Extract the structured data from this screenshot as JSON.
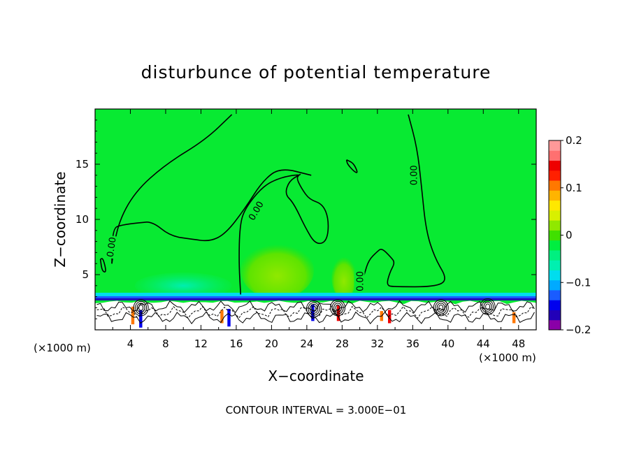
{
  "chart_data": {
    "type": "heatmap",
    "title": "disturbunce of potential temperature",
    "xlabel": "X−coordinate",
    "ylabel": "Z−coordinate",
    "x_unit_label": "(×1000 m)",
    "y_unit_label": "(×1000 m)",
    "footer": "CONTOUR INTERVAL = 3.000E−01",
    "xlim": [
      0,
      50
    ],
    "ylim": [
      0,
      20
    ],
    "x_ticks": [
      4,
      8,
      12,
      16,
      20,
      24,
      28,
      32,
      36,
      40,
      44,
      48
    ],
    "x_tick_labels": [
      "4",
      "8",
      "12",
      "16",
      "20",
      "24",
      "28",
      "32",
      "36",
      "40",
      "44",
      "48"
    ],
    "y_ticks": [
      5,
      10,
      15
    ],
    "y_tick_labels": [
      "5",
      "10",
      "15"
    ],
    "colorbar": {
      "range": [
        -0.2,
        0.2
      ],
      "tick_values": [
        0.2,
        0.1,
        0,
        -0.1,
        -0.2
      ],
      "tick_labels": [
        "0.2",
        "0.1",
        "0",
        "−0.1",
        "−0.2"
      ],
      "colors": [
        "#8a00a8",
        "#2200b8",
        "#0000ee",
        "#1a5cff",
        "#00aaff",
        "#00ddee",
        "#00f0b0",
        "#00f080",
        "#00ee40",
        "#40e000",
        "#90e800",
        "#d8f000",
        "#ffe800",
        "#ffb400",
        "#ff7800",
        "#ff2000",
        "#ee0000",
        "#ff7070",
        "#ff9999"
      ]
    },
    "background_value": 0.0,
    "contour_labels": [
      {
        "text": "0.00",
        "x": 1.8,
        "z": 7.5,
        "angle": -82
      },
      {
        "text": "0.00",
        "x": 18.2,
        "z": 10.8,
        "angle": -60
      },
      {
        "text": "0.00",
        "x": 36.1,
        "z": 14.0,
        "angle": -90
      },
      {
        "text": "0.00",
        "x": 30.0,
        "z": 4.4,
        "angle": -90
      }
    ],
    "contour_lines": [
      {
        "name": "upper-left-zero-contour",
        "points": [
          [
            1.9,
            6.0
          ],
          [
            2.5,
            9.5
          ],
          [
            4.5,
            12.5
          ],
          [
            8.0,
            15.0
          ],
          [
            12.5,
            17.2
          ],
          [
            15.5,
            19.5
          ]
        ]
      },
      {
        "name": "upper-left-zero-contour-lower",
        "points": [
          [
            1.9,
            6.0
          ],
          [
            2.0,
            9.2
          ],
          [
            3.0,
            9.5
          ],
          [
            5.0,
            9.7
          ],
          [
            6.5,
            9.8
          ],
          [
            8.5,
            8.5
          ],
          [
            11.0,
            8.2
          ],
          [
            13.0,
            8.0
          ],
          [
            14.8,
            8.7
          ],
          [
            17.0,
            11.0
          ],
          [
            19.0,
            13.5
          ],
          [
            21.0,
            14.7
          ],
          [
            24.5,
            14.0
          ]
        ]
      },
      {
        "name": "right-zero-contour",
        "points": [
          [
            35.5,
            19.5
          ],
          [
            36.5,
            16.5
          ],
          [
            37.0,
            13.0
          ],
          [
            37.5,
            9.0
          ],
          [
            38.5,
            6.5
          ],
          [
            40.0,
            4.5
          ],
          [
            38.5,
            3.9
          ],
          [
            34.0,
            3.9
          ],
          [
            33.0,
            4.0
          ],
          [
            33.4,
            5.2
          ],
          [
            34.0,
            6.1
          ],
          [
            33.5,
            6.6
          ],
          [
            32.5,
            7.4
          ],
          [
            32.0,
            7.1
          ],
          [
            31.0,
            6.3
          ],
          [
            30.5,
            5.0
          ],
          [
            30.0,
            3.5
          ]
        ]
      },
      {
        "name": "middle-zero-contour",
        "points": [
          [
            16.5,
            3.2
          ],
          [
            16.3,
            6.0
          ],
          [
            16.4,
            9.5
          ],
          [
            17.0,
            11.0
          ],
          [
            19.0,
            13.0
          ],
          [
            21.0,
            13.8
          ],
          [
            23.3,
            14.1
          ],
          [
            22.8,
            13.8
          ],
          [
            23.4,
            12.8
          ],
          [
            24.3,
            11.8
          ],
          [
            25.8,
            11.4
          ],
          [
            26.5,
            10.0
          ],
          [
            26.3,
            8.0
          ],
          [
            25.0,
            7.7
          ],
          [
            23.8,
            9.3
          ],
          [
            22.5,
            11.5
          ],
          [
            21.5,
            12.3
          ],
          [
            22.0,
            13.5
          ],
          [
            23.3,
            14.1
          ]
        ]
      },
      {
        "name": "small-closed-contour",
        "points": [
          [
            28.5,
            15.4
          ],
          [
            29.3,
            15.1
          ],
          [
            29.8,
            14.2
          ],
          [
            29.4,
            14.3
          ],
          [
            28.6,
            15.0
          ],
          [
            28.5,
            15.4
          ]
        ]
      },
      {
        "name": "far-left-small-contour",
        "points": [
          [
            0.6,
            6.4
          ],
          [
            0.8,
            5.3
          ],
          [
            1.3,
            5.2
          ],
          [
            0.9,
            6.5
          ],
          [
            0.6,
            6.4
          ]
        ]
      }
    ],
    "warm_anomaly_regions": [
      {
        "name": "central-warm-blob",
        "x": [
          16.5,
          24.8
        ],
        "z": [
          2.8,
          8.0
        ],
        "value": 0.05
      },
      {
        "name": "right-warm-blob",
        "x": [
          26.8,
          29.6
        ],
        "z": [
          2.8,
          6.8
        ],
        "value": 0.05
      },
      {
        "name": "left-cool-blob",
        "x": [
          4.5,
          15.5
        ],
        "z": [
          2.8,
          5.2
        ],
        "value": -0.03
      }
    ]
  }
}
